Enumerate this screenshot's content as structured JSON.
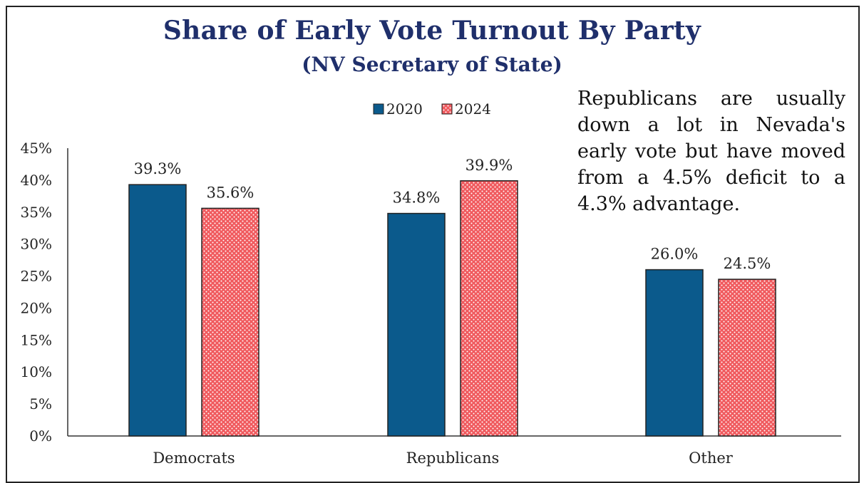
{
  "chart_data": {
    "type": "bar",
    "title": "Share of Early Vote Turnout By Party",
    "subtitle": "(NV Secretary of State)",
    "categories": [
      "Democrats",
      "Republicans",
      "Other"
    ],
    "series": [
      {
        "name": "2020",
        "values": [
          39.3,
          34.8,
          26.0
        ],
        "labels": [
          "39.3%",
          "34.8%",
          "26.0%"
        ],
        "color": "#0b5a8c",
        "pattern": "solid"
      },
      {
        "name": "2024",
        "values": [
          35.6,
          39.9,
          24.5
        ],
        "labels": [
          "35.6%",
          "39.9%",
          "24.5%"
        ],
        "color": "#f05a5e",
        "pattern": "dotted"
      }
    ],
    "ylim": [
      0,
      45
    ],
    "yticks": [
      "0%",
      "5%",
      "10%",
      "15%",
      "20%",
      "25%",
      "30%",
      "35%",
      "40%",
      "45%"
    ],
    "xlabel": "",
    "ylabel": "",
    "grid": false,
    "legend_position": "top-center",
    "annotation": "Republicans are usually down a lot in Nevada's early vote but have moved from a 4.5% deficit to a 4.3% advantage."
  }
}
